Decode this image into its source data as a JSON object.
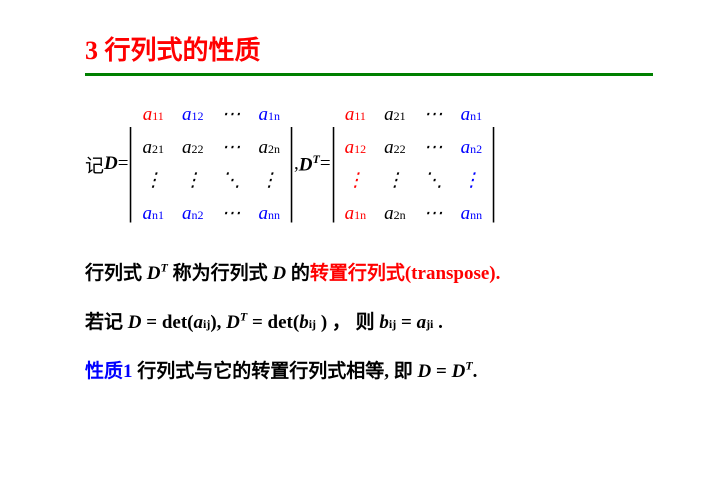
{
  "title": "3 行列式的性质",
  "intro": "记 ",
  "D": "D",
  "eq": " = ",
  "comma": ", ",
  "DT": "D",
  "T": "T",
  "m": {
    "a11": "a",
    "s11": "11",
    "a12": "a",
    "s12": "12",
    "dots": "⋯",
    "a1n": "a",
    "s1n": "1n",
    "a21": "a",
    "s21": "21",
    "a22": "a",
    "s22": "22",
    "a2n": "a",
    "s2n": "2n",
    "vd": "⋮",
    "dd": "⋱",
    "an1": "a",
    "sn1": "n1",
    "an2": "a",
    "sn2": "n2",
    "ann": "a",
    "snn": "nn"
  },
  "mt": {
    "a11": "a",
    "s11": "11",
    "a21": "a",
    "s21": "21",
    "a1n": "a",
    "s1n": "n1",
    "a12": "a",
    "s12": "12",
    "a22": "a",
    "s22": "22",
    "a2n": "a",
    "s2n": "n2",
    "an1": "a",
    "sn1": "1n",
    "an2": "a",
    "sn2": "2n",
    "ann": "a",
    "snn": "nn"
  },
  "line2a": "行列式 ",
  "line2b": " 称为行列式 ",
  "line2c": " 的",
  "line2d": "转置行列式(transpose).",
  "line3a": "若记 ",
  "line3b": " = det(",
  "aij": "a",
  "sij": "ij",
  "line3c": "),  ",
  "line3d": " = det(",
  "bij": "b",
  "line3e": " ) ， 则 ",
  "line3f": " = ",
  "aji": "a",
  "sji": "ji",
  "dot": " .",
  "line4a": "性质1",
  "line4b": "    行列式与它的转置行列式相等, 即 ",
  "line4c": " = ",
  "dotend": "."
}
